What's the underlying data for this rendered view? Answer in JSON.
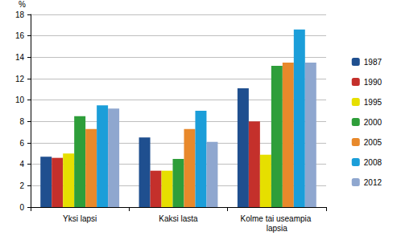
{
  "chart_data": {
    "type": "bar",
    "y_label": "%",
    "categories": [
      "Yksi lapsi",
      "Kaksi lasta",
      "Kolme tai useampia lapsia"
    ],
    "series": [
      {
        "name": "1987",
        "color": "#1f4f8f",
        "values": [
          4.7,
          6.5,
          11.1
        ]
      },
      {
        "name": "1990",
        "color": "#c4302b",
        "values": [
          4.6,
          3.4,
          8.0
        ]
      },
      {
        "name": "1995",
        "color": "#e6df00",
        "values": [
          5.0,
          3.4,
          4.9
        ]
      },
      {
        "name": "2000",
        "color": "#2e9e3a",
        "values": [
          8.5,
          4.5,
          13.2
        ]
      },
      {
        "name": "2005",
        "color": "#e8892b",
        "values": [
          7.3,
          7.3,
          13.5
        ]
      },
      {
        "name": "2008",
        "color": "#1b9ed9",
        "values": [
          9.5,
          9.0,
          16.6
        ]
      },
      {
        "name": "2012",
        "color": "#8fa7cf",
        "values": [
          9.2,
          6.1,
          13.5
        ]
      }
    ],
    "ylim": [
      0,
      18
    ],
    "yticks": [
      0,
      2,
      4,
      6,
      8,
      10,
      12,
      14,
      16,
      18
    ],
    "grid": true,
    "legend": "right"
  }
}
